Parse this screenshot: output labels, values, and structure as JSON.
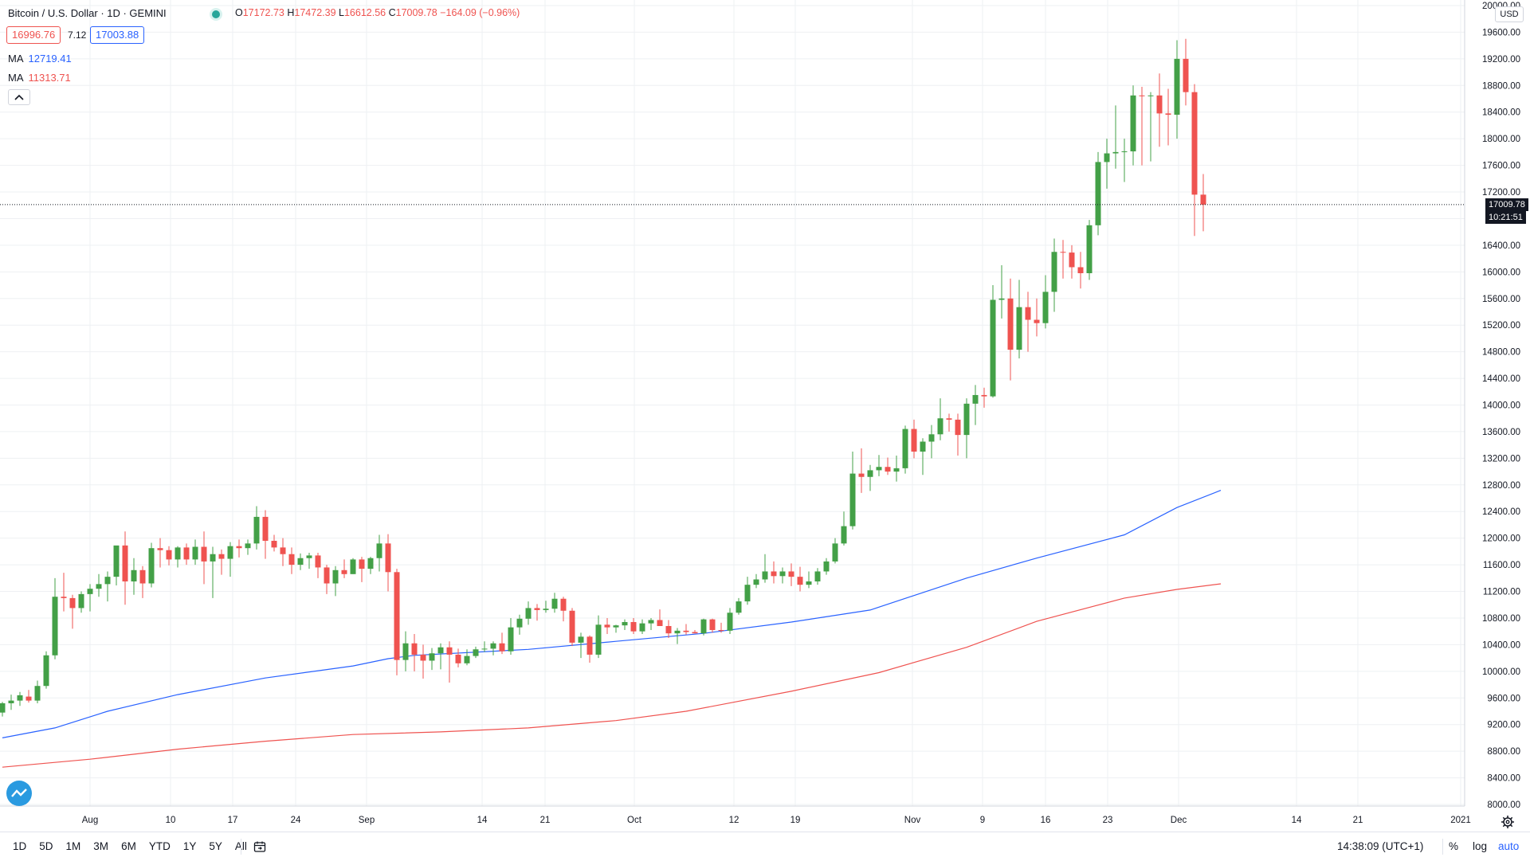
{
  "legend": {
    "title": "Bitcoin / U.S. Dollar · 1D · GEMINI",
    "open_label": "O",
    "open": "17172.73",
    "high_label": "H",
    "high": "17472.39",
    "low_label": "L",
    "low": "16612.56",
    "close_label": "C",
    "close": "17009.78",
    "change": "−164.09 (−0.96%)",
    "sell_price": "16996.76",
    "spread": "7.12",
    "buy_price": "17003.88",
    "ma1_label": "MA",
    "ma1_value": "12719.41",
    "ma1_color": "#2962ff",
    "ma2_label": "MA",
    "ma2_value": "11313.71",
    "ma2_color": "#ef5350"
  },
  "price_axis": {
    "currency": "USD",
    "last_price": "17009.78",
    "countdown": "10:21:51",
    "ticks": [
      "8000.00",
      "8400.00",
      "8800.00",
      "9200.00",
      "9600.00",
      "10000.00",
      "10400.00",
      "10800.00",
      "11200.00",
      "11600.00",
      "12000.00",
      "12400.00",
      "12800.00",
      "13200.00",
      "13600.00",
      "14000.00",
      "14400.00",
      "14800.00",
      "15200.00",
      "15600.00",
      "16000.00",
      "16400.00",
      "17200.00",
      "17600.00",
      "18000.00",
      "18400.00",
      "18800.00",
      "19200.00",
      "19600.00",
      "20000.00"
    ]
  },
  "time_axis": {
    "labels": [
      "Aug",
      "10",
      "17",
      "24",
      "Sep",
      "14",
      "21",
      "Oct",
      "12",
      "19",
      "Nov",
      "9",
      "16",
      "23",
      "Dec",
      "14",
      "21",
      "2021"
    ]
  },
  "bottom_bar": {
    "ranges": [
      "1D",
      "5D",
      "1M",
      "3M",
      "6M",
      "YTD",
      "1Y",
      "5Y",
      "All"
    ],
    "clock": "14:38:09 (UTC+1)",
    "percent": "%",
    "log": "log",
    "auto": "auto"
  },
  "colors": {
    "up": "#26a69a",
    "candle_up": "#43a047",
    "down": "#ef5350",
    "grid": "#eef0f3"
  },
  "chart_data": {
    "type": "candlestick",
    "symbol": "BTCUSD",
    "interval": "1D",
    "ylim": [
      8000,
      20000
    ],
    "candles": [
      [
        9380,
        9540,
        9320,
        9520
      ],
      [
        9520,
        9650,
        9420,
        9560
      ],
      [
        9560,
        9690,
        9480,
        9640
      ],
      [
        9620,
        9720,
        9530,
        9560
      ],
      [
        9560,
        9860,
        9520,
        9780
      ],
      [
        9780,
        10300,
        9740,
        10240
      ],
      [
        10240,
        11400,
        10180,
        11120
      ],
      [
        11120,
        11480,
        10900,
        11100
      ],
      [
        11100,
        11150,
        10640,
        10950
      ],
      [
        10950,
        11200,
        10880,
        11160
      ],
      [
        11160,
        11310,
        10900,
        11240
      ],
      [
        11240,
        11460,
        11120,
        11310
      ],
      [
        11310,
        11500,
        11050,
        11420
      ],
      [
        11420,
        11880,
        11290,
        11890
      ],
      [
        11890,
        12100,
        11000,
        11350
      ],
      [
        11350,
        11700,
        11150,
        11520
      ],
      [
        11520,
        11580,
        11100,
        11320
      ],
      [
        11320,
        11930,
        11260,
        11850
      ],
      [
        11850,
        12000,
        11560,
        11820
      ],
      [
        11820,
        11880,
        11590,
        11680
      ],
      [
        11680,
        11880,
        11560,
        11860
      ],
      [
        11860,
        11920,
        11600,
        11680
      ],
      [
        11680,
        11980,
        11600,
        11870
      ],
      [
        11870,
        12100,
        11310,
        11650
      ],
      [
        11650,
        11870,
        11100,
        11760
      ],
      [
        11760,
        11830,
        11450,
        11690
      ],
      [
        11690,
        11940,
        11420,
        11880
      ],
      [
        11880,
        11980,
        11710,
        11850
      ],
      [
        11850,
        11980,
        11750,
        11920
      ],
      [
        11920,
        12480,
        11830,
        12320
      ],
      [
        12320,
        12420,
        11690,
        11960
      ],
      [
        11960,
        12050,
        11800,
        11860
      ],
      [
        11860,
        12000,
        11580,
        11760
      ],
      [
        11760,
        11860,
        11460,
        11600
      ],
      [
        11600,
        11770,
        11520,
        11700
      ],
      [
        11700,
        11780,
        11540,
        11740
      ],
      [
        11740,
        11780,
        11400,
        11560
      ],
      [
        11560,
        11600,
        11160,
        11320
      ],
      [
        11320,
        11580,
        11130,
        11520
      ],
      [
        11520,
        11680,
        11400,
        11460
      ],
      [
        11460,
        11700,
        11460,
        11680
      ],
      [
        11680,
        11720,
        11340,
        11540
      ],
      [
        11540,
        11720,
        11460,
        11700
      ],
      [
        11700,
        12050,
        11500,
        11920
      ],
      [
        11920,
        12060,
        11200,
        11490
      ],
      [
        11490,
        11540,
        9940,
        10170
      ],
      [
        10170,
        10600,
        10000,
        10420
      ],
      [
        10420,
        10560,
        10000,
        10250
      ],
      [
        10250,
        10400,
        9890,
        10160
      ],
      [
        10160,
        10350,
        10020,
        10270
      ],
      [
        10270,
        10420,
        10030,
        10360
      ],
      [
        10360,
        10450,
        9830,
        10250
      ],
      [
        10250,
        10340,
        10060,
        10120
      ],
      [
        10120,
        10330,
        10090,
        10230
      ],
      [
        10230,
        10370,
        10200,
        10330
      ],
      [
        10330,
        10450,
        10290,
        10340
      ],
      [
        10340,
        10450,
        10240,
        10420
      ],
      [
        10420,
        10580,
        10260,
        10300
      ],
      [
        10300,
        10800,
        10250,
        10660
      ],
      [
        10660,
        10850,
        10550,
        10790
      ],
      [
        10790,
        11050,
        10700,
        10950
      ],
      [
        10950,
        11010,
        10760,
        10920
      ],
      [
        10920,
        11060,
        10880,
        10940
      ],
      [
        10940,
        11180,
        10880,
        11090
      ],
      [
        11090,
        11120,
        10750,
        10910
      ],
      [
        10910,
        10950,
        10380,
        10430
      ],
      [
        10430,
        10580,
        10200,
        10520
      ],
      [
        10520,
        10540,
        10130,
        10250
      ],
      [
        10250,
        10840,
        10200,
        10700
      ],
      [
        10700,
        10800,
        10560,
        10660
      ],
      [
        10660,
        10700,
        10580,
        10690
      ],
      [
        10690,
        10780,
        10620,
        10740
      ],
      [
        10740,
        10800,
        10560,
        10600
      ],
      [
        10600,
        10780,
        10560,
        10720
      ],
      [
        10720,
        10800,
        10620,
        10770
      ],
      [
        10770,
        10930,
        10680,
        10680
      ],
      [
        10680,
        10770,
        10500,
        10570
      ],
      [
        10570,
        10650,
        10410,
        10610
      ],
      [
        10610,
        10710,
        10550,
        10590
      ],
      [
        10590,
        10620,
        10570,
        10570
      ],
      [
        10570,
        10790,
        10540,
        10780
      ],
      [
        10780,
        10790,
        10580,
        10620
      ],
      [
        10620,
        10730,
        10580,
        10610
      ],
      [
        10610,
        10950,
        10560,
        10880
      ],
      [
        10880,
        11100,
        10850,
        11050
      ],
      [
        11050,
        11420,
        11000,
        11300
      ],
      [
        11300,
        11460,
        11250,
        11380
      ],
      [
        11380,
        11760,
        11330,
        11500
      ],
      [
        11500,
        11650,
        11320,
        11430
      ],
      [
        11430,
        11560,
        11320,
        11500
      ],
      [
        11500,
        11620,
        11280,
        11420
      ],
      [
        11420,
        11570,
        11200,
        11300
      ],
      [
        11300,
        11500,
        11250,
        11350
      ],
      [
        11350,
        11550,
        11300,
        11500
      ],
      [
        11500,
        11700,
        11450,
        11650
      ],
      [
        11650,
        12000,
        11620,
        11920
      ],
      [
        11920,
        12400,
        11890,
        12180
      ],
      [
        12180,
        13300,
        12130,
        12970
      ],
      [
        12970,
        13350,
        12680,
        12920
      ],
      [
        12920,
        13100,
        12710,
        13020
      ],
      [
        13020,
        13250,
        12930,
        13070
      ],
      [
        13070,
        13210,
        12950,
        13000
      ],
      [
        13000,
        13240,
        12850,
        13050
      ],
      [
        13050,
        13690,
        12970,
        13640
      ],
      [
        13640,
        13780,
        13200,
        13300
      ],
      [
        13300,
        13500,
        12950,
        13450
      ],
      [
        13450,
        13700,
        13200,
        13560
      ],
      [
        13560,
        14100,
        13470,
        13800
      ],
      [
        13800,
        13870,
        13600,
        13780
      ],
      [
        13780,
        13870,
        13240,
        13550
      ],
      [
        13550,
        14100,
        13200,
        14020
      ],
      [
        14020,
        14300,
        13700,
        14150
      ],
      [
        14150,
        14260,
        13960,
        14130
      ],
      [
        14130,
        15800,
        14110,
        15580
      ],
      [
        15580,
        16100,
        15300,
        15600
      ],
      [
        15600,
        15900,
        14370,
        14830
      ],
      [
        14830,
        15880,
        14700,
        15470
      ],
      [
        15470,
        15700,
        14800,
        15280
      ],
      [
        15280,
        15600,
        15030,
        15230
      ],
      [
        15230,
        15950,
        15150,
        15700
      ],
      [
        15700,
        16500,
        15400,
        16300
      ],
      [
        16300,
        16480,
        15900,
        16290
      ],
      [
        16290,
        16400,
        15900,
        16070
      ],
      [
        16070,
        16300,
        15750,
        15980
      ],
      [
        15980,
        16780,
        15880,
        16700
      ],
      [
        16700,
        17800,
        16550,
        17650
      ],
      [
        17650,
        18000,
        17250,
        17780
      ],
      [
        17780,
        18500,
        17550,
        17800
      ],
      [
        17800,
        18000,
        17350,
        17810
      ],
      [
        17810,
        18800,
        17600,
        18650
      ],
      [
        18650,
        18780,
        17600,
        18640
      ],
      [
        18640,
        18700,
        17660,
        18650
      ],
      [
        18650,
        18980,
        17880,
        18380
      ],
      [
        18380,
        18750,
        17900,
        18360
      ],
      [
        18360,
        19480,
        18000,
        19200
      ],
      [
        19200,
        19500,
        18500,
        18700
      ],
      [
        18700,
        18820,
        16540,
        17160
      ],
      [
        17160,
        17470,
        16610,
        17010
      ]
    ],
    "ma_blue": [
      [
        0,
        9000
      ],
      [
        6,
        9150
      ],
      [
        12,
        9400
      ],
      [
        20,
        9650
      ],
      [
        30,
        9900
      ],
      [
        40,
        10080
      ],
      [
        44,
        10190
      ],
      [
        47,
        10240
      ],
      [
        60,
        10330
      ],
      [
        70,
        10450
      ],
      [
        80,
        10570
      ],
      [
        90,
        10740
      ],
      [
        99,
        10920
      ],
      [
        110,
        11400
      ],
      [
        118,
        11700
      ],
      [
        128,
        12050
      ],
      [
        134,
        12460
      ],
      [
        139,
        12719
      ]
    ],
    "ma2_red": [
      [
        0,
        8560
      ],
      [
        10,
        8680
      ],
      [
        20,
        8830
      ],
      [
        30,
        8950
      ],
      [
        40,
        9050
      ],
      [
        50,
        9090
      ],
      [
        60,
        9150
      ],
      [
        70,
        9260
      ],
      [
        78,
        9400
      ],
      [
        90,
        9700
      ],
      [
        100,
        9980
      ],
      [
        110,
        10360
      ],
      [
        118,
        10750
      ],
      [
        128,
        11100
      ],
      [
        134,
        11230
      ],
      [
        139,
        11314
      ]
    ]
  }
}
